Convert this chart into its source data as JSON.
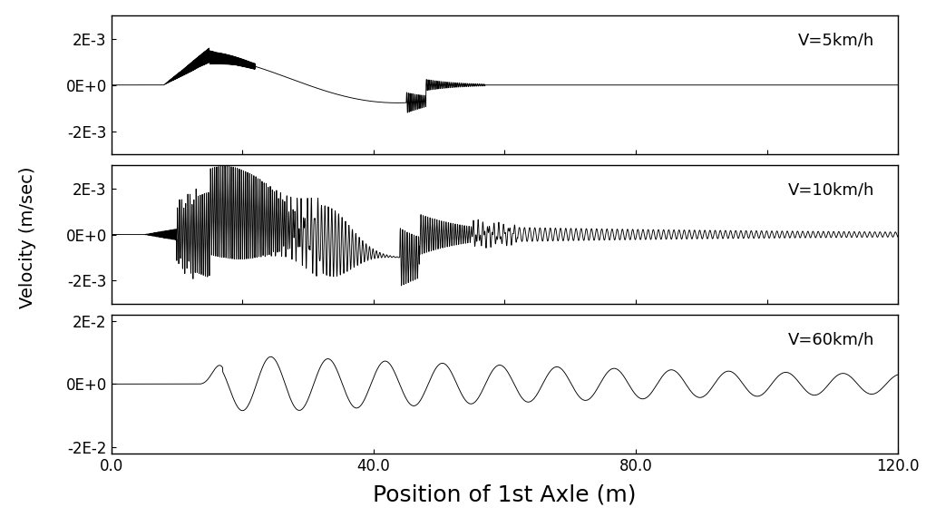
{
  "title": "",
  "xlabel": "Position of 1st Axle (m)",
  "ylabel": "Velocity (m/sec)",
  "xlabel_fontsize": 18,
  "ylabel_fontsize": 14,
  "tick_fontsize": 12,
  "label_fontsize": 13,
  "xlim": [
    0.0,
    120.0
  ],
  "xticks": [
    0.0,
    40.0,
    80.0,
    120.0
  ],
  "panels": [
    {
      "label": "V=5km/h",
      "ylim": [
        -0.003,
        0.003
      ],
      "yticks": [
        -0.002,
        0.0,
        0.002
      ],
      "ytick_labels": [
        "-2E-3",
        "0E+0",
        "2E-3"
      ]
    },
    {
      "label": "V=10km/h",
      "ylim": [
        -0.003,
        0.003
      ],
      "yticks": [
        -0.002,
        0.0,
        0.002
      ],
      "ytick_labels": [
        "-2E-3",
        "0E+0",
        "2E-3"
      ]
    },
    {
      "label": "V=60km/h",
      "ylim": [
        -0.022,
        0.022
      ],
      "yticks": [
        -0.02,
        0.0,
        0.02
      ],
      "ytick_labels": [
        "-2E-2",
        "0E+0",
        "2E-2"
      ]
    }
  ],
  "line_color": "#000000",
  "background_color": "#ffffff"
}
